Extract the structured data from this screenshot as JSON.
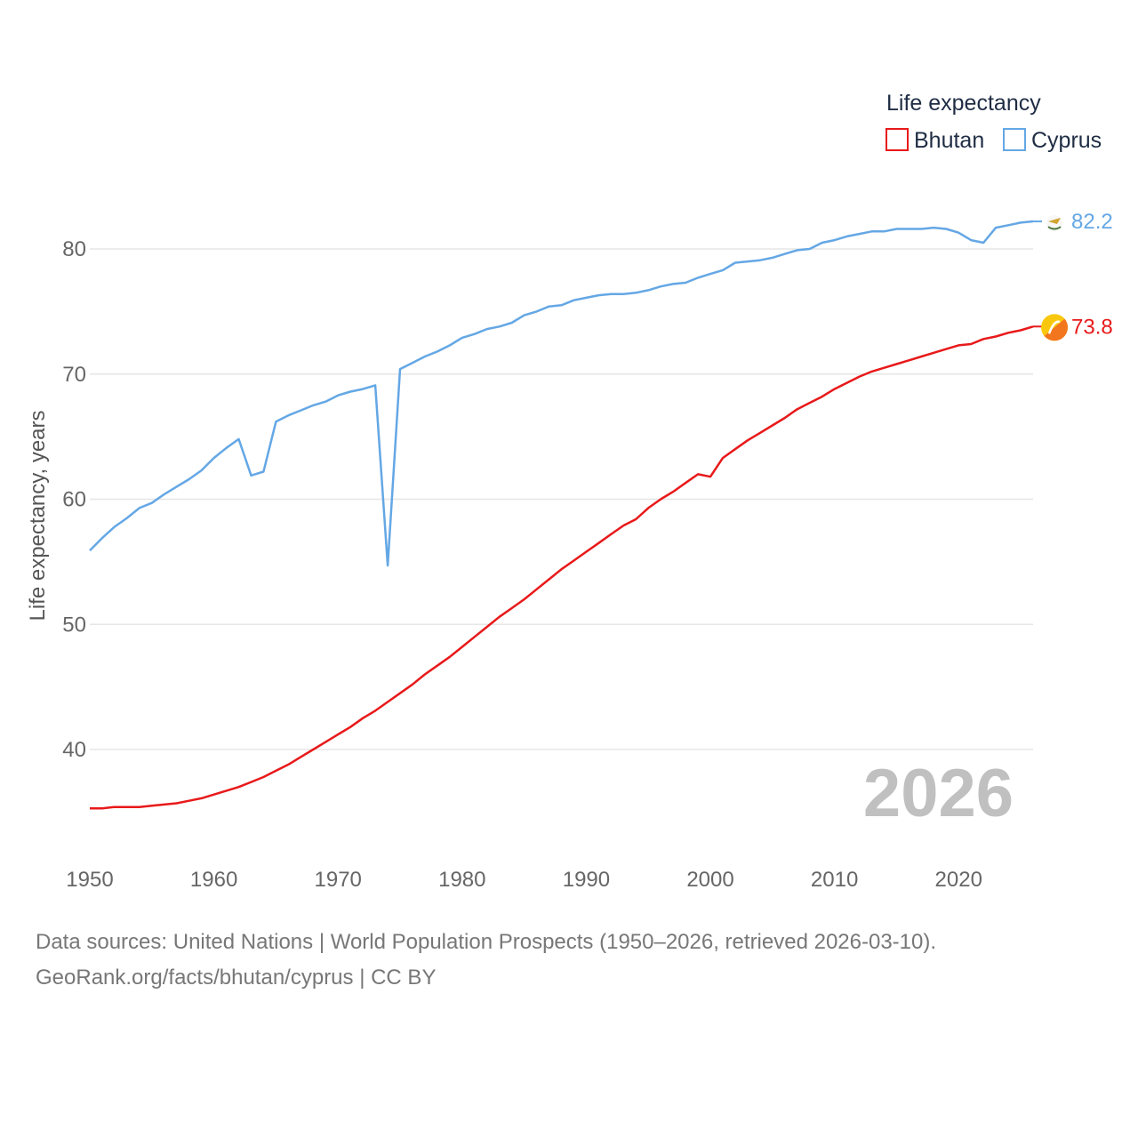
{
  "chart_data": {
    "type": "line",
    "title": "",
    "legend_title": "Life expectancy",
    "ylabel": "Life expectancy, years",
    "xlabel": "",
    "xlim": [
      1950,
      2026
    ],
    "ylim": [
      33,
      85
    ],
    "x_ticks": [
      1950,
      1960,
      1970,
      1980,
      1990,
      2000,
      2010,
      2020
    ],
    "y_ticks": [
      40,
      50,
      60,
      70,
      80
    ],
    "watermark_year": "2026",
    "legend_position": "top-right",
    "grid": true,
    "series": [
      {
        "name": "Bhutan",
        "color": "#e8191a",
        "end_label": "73.8",
        "flag_icon": "bhutan-flag-icon",
        "x": [
          1950,
          1951,
          1952,
          1953,
          1954,
          1955,
          1956,
          1957,
          1958,
          1959,
          1960,
          1961,
          1962,
          1963,
          1964,
          1965,
          1966,
          1967,
          1968,
          1969,
          1970,
          1971,
          1972,
          1973,
          1974,
          1975,
          1976,
          1977,
          1978,
          1979,
          1980,
          1981,
          1982,
          1983,
          1984,
          1985,
          1986,
          1987,
          1988,
          1989,
          1990,
          1991,
          1992,
          1993,
          1994,
          1995,
          1996,
          1997,
          1998,
          1999,
          2000,
          2001,
          2002,
          2003,
          2004,
          2005,
          2006,
          2007,
          2008,
          2009,
          2010,
          2011,
          2012,
          2013,
          2014,
          2015,
          2016,
          2017,
          2018,
          2019,
          2020,
          2021,
          2022,
          2023,
          2024,
          2025,
          2026
        ],
        "values": [
          35.3,
          35.3,
          35.4,
          35.4,
          35.4,
          35.5,
          35.6,
          35.7,
          35.9,
          36.1,
          36.4,
          36.7,
          37.0,
          37.4,
          37.8,
          38.3,
          38.8,
          39.4,
          40.0,
          40.6,
          41.2,
          41.8,
          42.5,
          43.1,
          43.8,
          44.5,
          45.2,
          46.0,
          46.7,
          47.4,
          48.2,
          49.0,
          49.8,
          50.6,
          51.3,
          52.0,
          52.8,
          53.6,
          54.4,
          55.1,
          55.8,
          56.5,
          57.2,
          57.9,
          58.4,
          59.3,
          60.0,
          60.6,
          61.3,
          62.0,
          61.8,
          63.3,
          64.0,
          64.7,
          65.3,
          65.9,
          66.5,
          67.2,
          67.7,
          68.2,
          68.8,
          69.3,
          69.8,
          70.2,
          70.5,
          70.8,
          71.1,
          71.4,
          71.7,
          72.0,
          72.3,
          72.4,
          72.8,
          73.0,
          73.3,
          73.5,
          73.8
        ]
      },
      {
        "name": "Cyprus",
        "color": "#64a7e5",
        "end_label": "82.2",
        "flag_icon": "cyprus-flag-icon",
        "x": [
          1950,
          1951,
          1952,
          1953,
          1954,
          1955,
          1956,
          1957,
          1958,
          1959,
          1960,
          1961,
          1962,
          1963,
          1964,
          1965,
          1966,
          1967,
          1968,
          1969,
          1970,
          1971,
          1972,
          1973,
          1974,
          1975,
          1976,
          1977,
          1978,
          1979,
          1980,
          1981,
          1982,
          1983,
          1984,
          1985,
          1986,
          1987,
          1988,
          1989,
          1990,
          1991,
          1992,
          1993,
          1994,
          1995,
          1996,
          1997,
          1998,
          1999,
          2000,
          2001,
          2002,
          2003,
          2004,
          2005,
          2006,
          2007,
          2008,
          2009,
          2010,
          2011,
          2012,
          2013,
          2014,
          2015,
          2016,
          2017,
          2018,
          2019,
          2020,
          2021,
          2022,
          2023,
          2024,
          2025,
          2026
        ],
        "values": [
          55.9,
          56.9,
          57.8,
          58.5,
          59.3,
          59.7,
          60.4,
          61.0,
          61.6,
          62.3,
          63.3,
          64.1,
          64.8,
          61.9,
          62.2,
          66.2,
          66.7,
          67.1,
          67.5,
          67.8,
          68.3,
          68.6,
          68.8,
          69.1,
          54.7,
          70.4,
          70.9,
          71.4,
          71.8,
          72.3,
          72.9,
          73.2,
          73.6,
          73.8,
          74.1,
          74.7,
          75.0,
          75.4,
          75.5,
          75.9,
          76.1,
          76.3,
          76.4,
          76.4,
          76.5,
          76.7,
          77.0,
          77.2,
          77.3,
          77.7,
          78.0,
          78.3,
          78.9,
          79.0,
          79.1,
          79.3,
          79.6,
          79.9,
          80.0,
          80.5,
          80.7,
          81.0,
          81.2,
          81.4,
          81.4,
          81.6,
          81.6,
          81.6,
          81.7,
          81.6,
          81.3,
          80.7,
          80.5,
          81.7,
          81.9,
          82.1,
          82.2
        ]
      }
    ]
  },
  "source": {
    "line1": "Data sources: United Nations | World Population Prospects (1950–2026, retrieved 2026-03-10).",
    "line2": "GeoRank.org/facts/bhutan/cyprus | CC BY"
  }
}
